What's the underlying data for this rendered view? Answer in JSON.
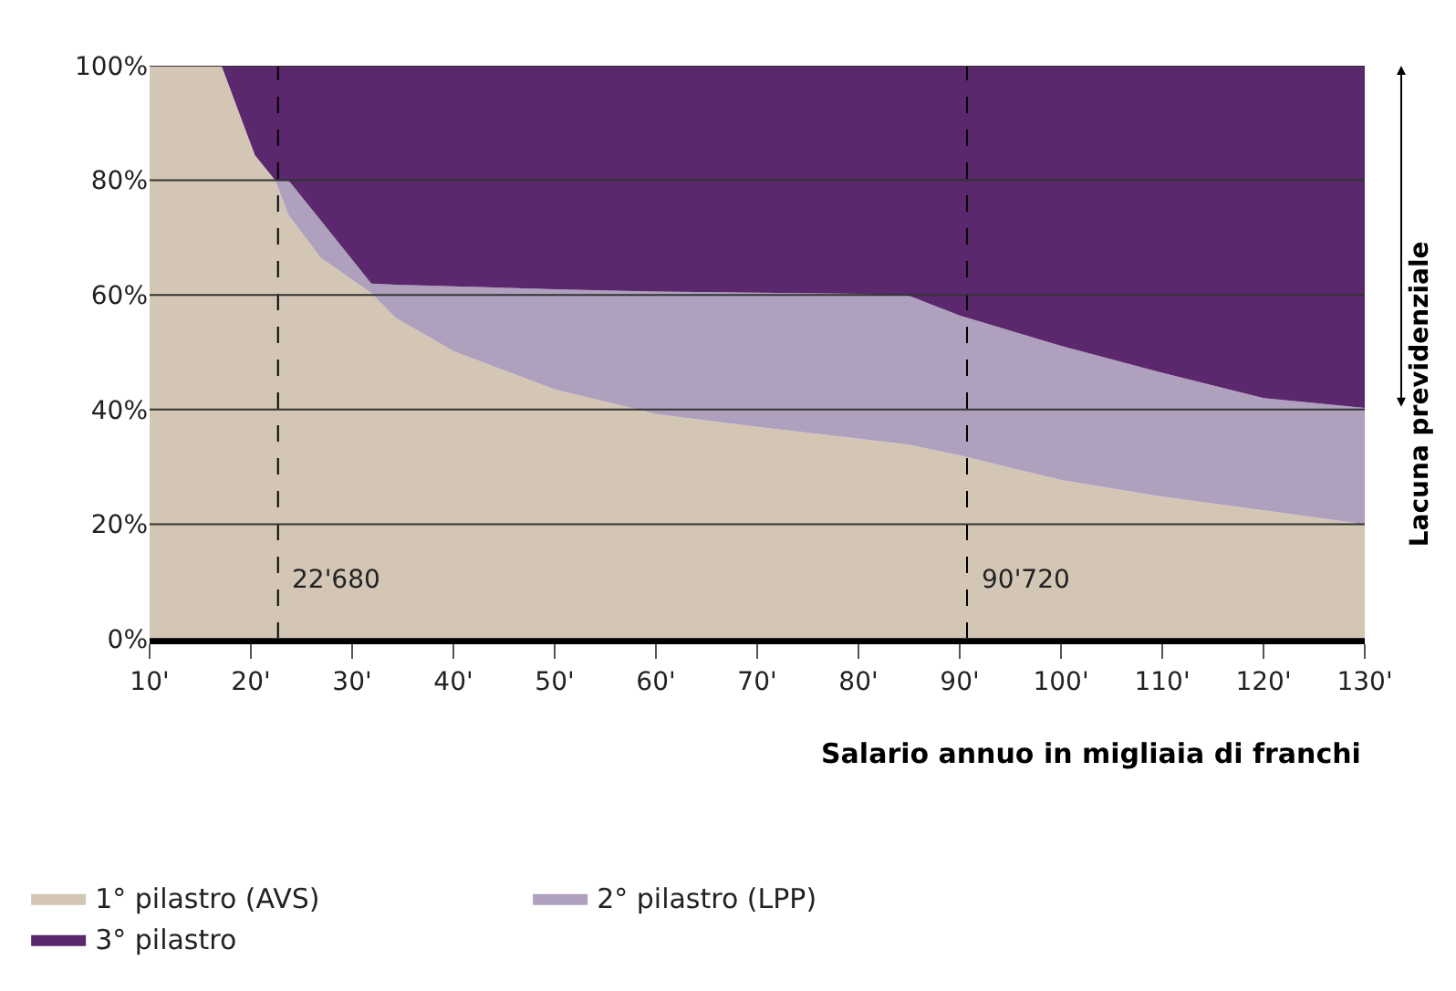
{
  "chart_data": {
    "type": "area",
    "stacked": true,
    "xlabel": "Salario annuo in migliaia di franchi",
    "x": [
      10,
      17.1,
      20.4,
      22.4,
      23.7,
      26.9,
      31.9,
      34.3,
      40,
      50,
      56.8,
      60,
      70,
      80,
      84.8,
      90,
      100,
      110,
      120,
      130
    ],
    "series": [
      {
        "name": "1° pilastro (AVS)",
        "color": "#d3c6b4",
        "values": [
          100,
          100,
          84.4,
          80,
          74,
          66.5,
          60.3,
          56,
          50.2,
          43.5,
          40.6,
          39.2,
          37,
          34.9,
          33.9,
          32,
          27.7,
          24.8,
          22.4,
          20
        ]
      },
      {
        "name": "2° pilastro (LPP)",
        "color": "#afa0be",
        "values": [
          0,
          0,
          0,
          0,
          6,
          6.5,
          1.7,
          5.8,
          11.3,
          17.5,
          20.1,
          21.4,
          23.4,
          25.3,
          26.1,
          24.4,
          23.4,
          21.6,
          19.6,
          20.3
        ]
      },
      {
        "name": "3° pilastro",
        "color": "#5b276d",
        "values": [
          0,
          0,
          15.6,
          20,
          20,
          27,
          38,
          38.2,
          38.5,
          39,
          39.3,
          39.4,
          39.6,
          39.8,
          40,
          43.6,
          48.9,
          53.6,
          58,
          59.7
        ]
      }
    ],
    "xlim": [
      10,
      130
    ],
    "xticks": [
      {
        "value": 10,
        "label": "10'"
      },
      {
        "value": 20,
        "label": "20'"
      },
      {
        "value": 30,
        "label": "30'"
      },
      {
        "value": 40,
        "label": "40'"
      },
      {
        "value": 50,
        "label": "50'"
      },
      {
        "value": 60,
        "label": "60'"
      },
      {
        "value": 70,
        "label": "70'"
      },
      {
        "value": 80,
        "label": "80'"
      },
      {
        "value": 90,
        "label": "90'"
      },
      {
        "value": 100,
        "label": "100'"
      },
      {
        "value": 110,
        "label": "110'"
      },
      {
        "value": 120,
        "label": "120'"
      },
      {
        "value": 130,
        "label": "130'"
      }
    ],
    "ylim": [
      0,
      100
    ],
    "yticks": [
      {
        "value": 0,
        "label": "0%"
      },
      {
        "value": 20,
        "label": "20%"
      },
      {
        "value": 40,
        "label": "40%"
      },
      {
        "value": 60,
        "label": "60%"
      },
      {
        "value": 80,
        "label": "80%"
      },
      {
        "value": 100,
        "label": "100%"
      }
    ],
    "ref_lines": [
      {
        "axis": "x",
        "value": 22.68,
        "label": "22'680",
        "color": "#000000",
        "line_style": "dashed"
      },
      {
        "axis": "x",
        "value": 90.72,
        "label": "90'720",
        "color": "#000000",
        "line_style": "dashed"
      }
    ],
    "annotations": [
      "Lacuna previdenziale"
    ],
    "grid": "y",
    "legend": "bottom"
  }
}
